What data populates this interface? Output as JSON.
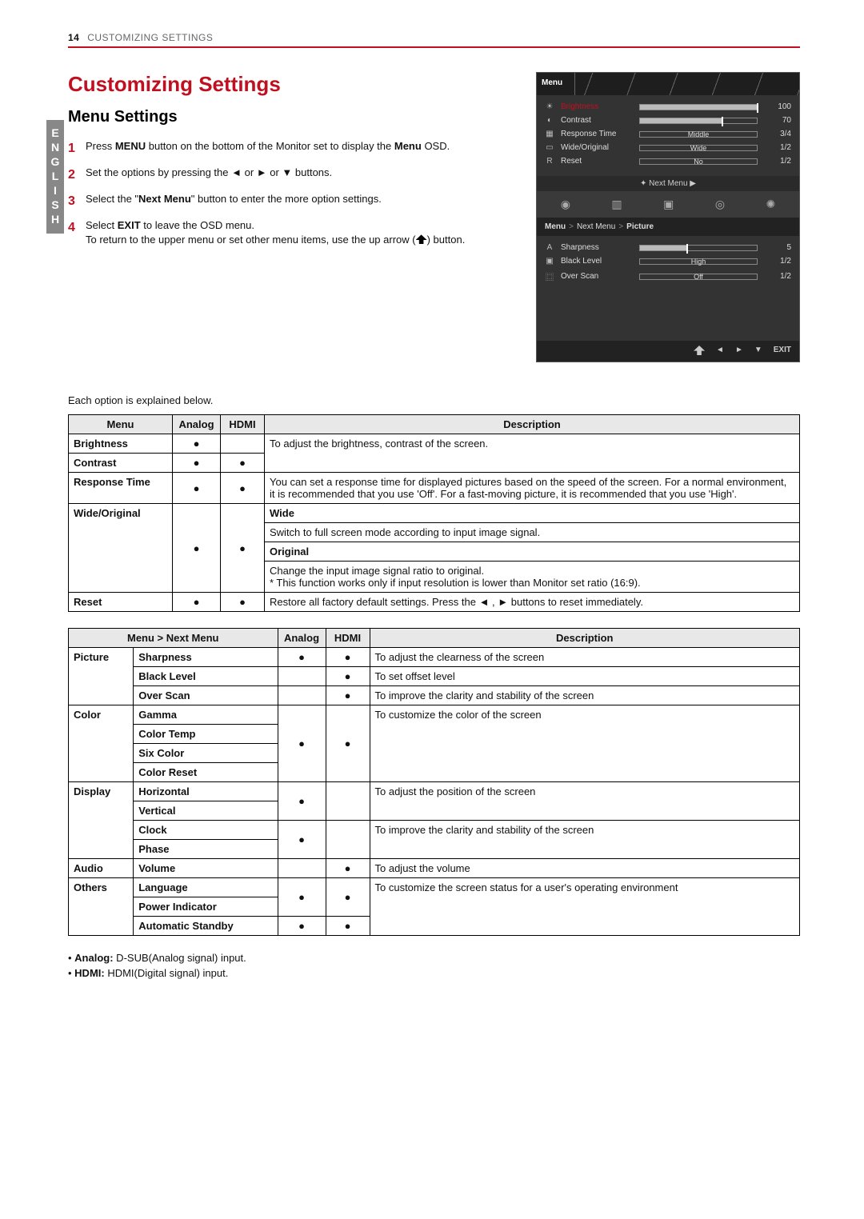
{
  "page": {
    "number": "14",
    "section": "CUSTOMIZING SETTINGS"
  },
  "sideLabel": "ENGLISH",
  "title": "Customizing Settings",
  "subtitle": "Menu Settings",
  "steps": [
    {
      "pre": "Press ",
      "b1": "MENU",
      "mid": " button on the bottom of the Monitor set to display the ",
      "b2": "Menu",
      "post": " OSD."
    },
    {
      "text": "Set the options by pressing the ◄ or ► or ▼ buttons."
    },
    {
      "pre": "Select the \"",
      "b1": "Next Menu",
      "post": "\" button to enter the more option settings."
    },
    {
      "pre": "Select ",
      "b1": "EXIT",
      "mid": " to leave the OSD menu.\nTo return to the upper menu or set other menu items, use the up arrow (",
      "icon": true,
      "post": ") button."
    }
  ],
  "introBelow": "Each option is explained below.",
  "osd1": {
    "menuLabel": "Menu",
    "items": [
      {
        "ico": "☀",
        "label": "Brightness",
        "value": "100",
        "pct": 100,
        "hl": true,
        "slider": true
      },
      {
        "ico": "◐",
        "label": "Contrast",
        "value": "70",
        "pct": 70,
        "slider": true
      },
      {
        "ico": "▦",
        "label": "Response Time",
        "value": "3/4",
        "txt": "Middle"
      },
      {
        "ico": "▭",
        "label": "Wide/Original",
        "value": "1/2",
        "txt": "Wide"
      },
      {
        "ico": "R",
        "label": "Reset",
        "value": "1/2",
        "txt": "No"
      }
    ],
    "nextMenu": "✦  Next Menu  ▶"
  },
  "osd2": {
    "crumb": [
      "Menu",
      "Next Menu",
      "Picture"
    ],
    "items": [
      {
        "ico": "A",
        "label": "Sharpness",
        "value": "5",
        "pct": 40,
        "slider": true
      },
      {
        "ico": "▣",
        "label": "Black Level",
        "value": "1/2",
        "txt": "High"
      },
      {
        "ico": "⿴",
        "label": "Over Scan",
        "value": "1/2",
        "txt": "Off"
      }
    ],
    "footer": [
      "◄",
      "►",
      "▼",
      "EXIT"
    ]
  },
  "table1": {
    "headers": [
      "Menu",
      "Analog",
      "HDMI",
      "Description"
    ],
    "rows": [
      {
        "menu": "Brightness",
        "a": "●",
        "h": "●",
        "descKey": "d_bc",
        "rs": 2
      },
      {
        "menu": "Contrast",
        "a": "●",
        "h": "●"
      },
      {
        "menu": "Response Time",
        "a": "●",
        "h": "●",
        "desc": "You can set a response time for displayed pictures based on the speed of the screen. For a normal environment, it is recommended that you use 'Off'. For a fast-moving picture, it is recommended that you use 'High'."
      }
    ],
    "d_bc": "To adjust the brightness, contrast of the screen.",
    "wide": {
      "menu": "Wide/Original",
      "a": "●",
      "h": "●",
      "h1": "Wide",
      "d1": "Switch to full screen mode according to input image signal.",
      "h2": "Original",
      "d2": "Change the input image signal ratio to original.\n* This function works only if input resolution is lower than Monitor set ratio (16:9)."
    },
    "reset": {
      "menu": "Reset",
      "a": "●",
      "h": "●",
      "desc": "Restore all factory default settings. Press the ◄ , ► buttons to reset immediately."
    }
  },
  "table2": {
    "headers": [
      "Menu > Next Menu",
      "",
      "Analog",
      "HDMI",
      "Description"
    ],
    "groups": [
      {
        "cat": "Picture",
        "rows": [
          {
            "sub": "Sharpness",
            "a": "●",
            "h": "●",
            "desc": "To adjust the clearness of the screen"
          },
          {
            "sub": "Black Level",
            "a": "",
            "h": "●",
            "desc": "To set offset level"
          },
          {
            "sub": "Over Scan",
            "a": "",
            "h": "●",
            "desc": "To improve the clarity and stability of the screen"
          }
        ]
      },
      {
        "cat": "Color",
        "rows": [
          {
            "sub": "Gamma"
          },
          {
            "sub": "Color Temp"
          },
          {
            "sub": "Six Color"
          },
          {
            "sub": "Color Reset"
          }
        ],
        "a": "●",
        "h": "●",
        "desc": "To customize the color of the screen"
      },
      {
        "cat": "Display",
        "rows": [
          {
            "sub": "Horizontal"
          },
          {
            "sub": "Vertical"
          },
          {
            "sub": "Clock"
          },
          {
            "sub": "Phase"
          }
        ],
        "subgroups": [
          {
            "a": "●",
            "h": "",
            "desc": "To adjust the position of the screen",
            "span": 2
          },
          {
            "a": "●",
            "h": "",
            "desc": "To improve the clarity and stability of the screen",
            "span": 2
          }
        ]
      },
      {
        "cat": "Audio",
        "rows": [
          {
            "sub": "Volume",
            "a": "",
            "h": "●",
            "desc": "To adjust the volume"
          }
        ]
      },
      {
        "cat": "Others",
        "rows": [
          {
            "sub": "Language"
          },
          {
            "sub": "Power Indicator"
          },
          {
            "sub": "Automatic Standby",
            "a": "●",
            "h": "●"
          }
        ],
        "a": "●",
        "h": "●",
        "desc": "To customize the screen status for a user's operating environment",
        "descSpan": 3
      }
    ]
  },
  "footnotes": [
    {
      "b": "Analog:",
      "t": " D-SUB(Analog signal) input."
    },
    {
      "b": "HDMI:",
      "t": " HDMI(Digital signal) input."
    }
  ]
}
